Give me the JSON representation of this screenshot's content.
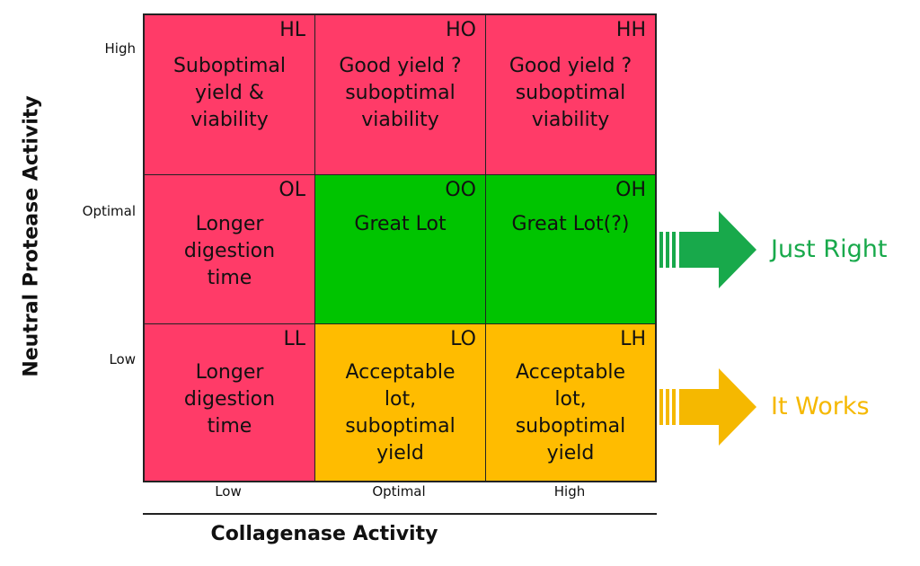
{
  "y_axis": {
    "label": "Neutral Protease Activity",
    "ticks": [
      "High",
      "Optimal",
      "Low"
    ]
  },
  "x_axis": {
    "label": "Collagenase Activity",
    "ticks": [
      "Low",
      "Optimal",
      "High"
    ]
  },
  "colors": {
    "red": "#ff3b68",
    "green": "#00c400",
    "orange": "#ffbc00",
    "just_right_text": "#18a94b",
    "it_works_text": "#f5b800"
  },
  "grid": {
    "row_high": {
      "low": {
        "code": "HL",
        "text": "Suboptimal\nyield &\nviability"
      },
      "optimal": {
        "code": "HO",
        "text": "Good yield ?\nsuboptimal\nviability"
      },
      "high": {
        "code": "HH",
        "text": "Good yield ?\nsuboptimal\nviability"
      }
    },
    "row_optimal": {
      "low": {
        "code": "OL",
        "text": "Longer\ndigestion\ntime"
      },
      "optimal": {
        "code": "OO",
        "text": "Great Lot"
      },
      "high": {
        "code": "OH",
        "text": "Great Lot(?)"
      }
    },
    "row_low": {
      "low": {
        "code": "LL",
        "text": "Longer\ndigestion\ntime"
      },
      "optimal": {
        "code": "LO",
        "text": "Acceptable\nlot,\nsuboptimal\nyield"
      },
      "high": {
        "code": "LH",
        "text": "Acceptable\nlot,\nsuboptimal\nyield"
      }
    }
  },
  "callouts": {
    "just_right": "Just Right",
    "it_works": "It Works"
  }
}
